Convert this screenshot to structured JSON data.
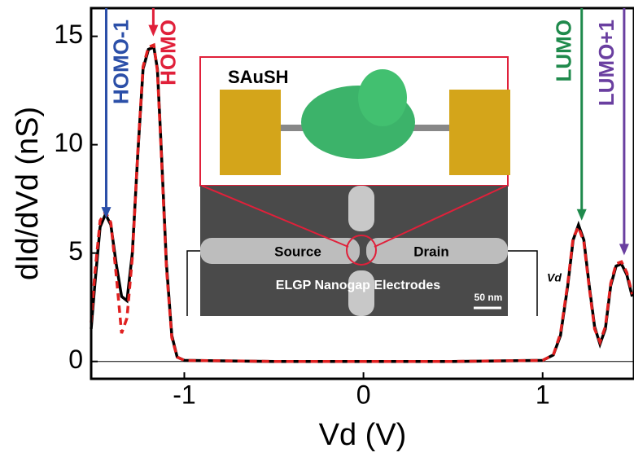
{
  "chart_data": {
    "type": "line",
    "xlabel": "Vd (V)",
    "ylabel": "dId/dVd (nS)",
    "xlim": [
      -1.52,
      1.51
    ],
    "ylim": [
      -0.8,
      16.3
    ],
    "xticks": [
      -1,
      0,
      1
    ],
    "yticks": [
      0,
      5,
      10,
      15
    ],
    "x": [
      -1.52,
      -1.5,
      -1.47,
      -1.44,
      -1.41,
      -1.38,
      -1.35,
      -1.32,
      -1.29,
      -1.26,
      -1.23,
      -1.2,
      -1.17,
      -1.15,
      -1.13,
      -1.1,
      -1.07,
      -1.04,
      -1.0,
      -0.5,
      0,
      0.5,
      1.0,
      1.06,
      1.1,
      1.14,
      1.17,
      1.2,
      1.23,
      1.26,
      1.29,
      1.32,
      1.35,
      1.38,
      1.41,
      1.44,
      1.47,
      1.5
    ],
    "series": [
      {
        "color": "#000000",
        "dash": false,
        "values": [
          1.5,
          3.5,
          6.2,
          6.8,
          6.3,
          4.5,
          3.0,
          2.8,
          5.0,
          9.5,
          13.5,
          14.4,
          14.5,
          13.5,
          10,
          4.5,
          1.2,
          0.2,
          0.05,
          0,
          0,
          0,
          0.05,
          0.3,
          1.2,
          3.5,
          5.6,
          6.3,
          5.6,
          3.5,
          1.6,
          0.8,
          1.5,
          3.5,
          4.4,
          4.5,
          4.0,
          3.0
        ]
      },
      {
        "color": "#e02020",
        "dash": true,
        "values": [
          1.8,
          4.0,
          6.5,
          6.9,
          6.4,
          4.0,
          1.3,
          2.0,
          4.8,
          9.6,
          13.6,
          14.5,
          14.6,
          13.4,
          9.8,
          4.3,
          1.1,
          0.2,
          0.05,
          0,
          0,
          0,
          0.05,
          0.3,
          1.3,
          3.6,
          5.7,
          6.2,
          5.5,
          3.4,
          1.5,
          0.9,
          1.6,
          3.6,
          4.5,
          4.6,
          4.1,
          3.1
        ]
      }
    ],
    "annotations": [
      {
        "text": "HOMO-1",
        "x": -1.436,
        "y": 6.6,
        "color": "#2b4fa8",
        "side": "right"
      },
      {
        "text": "HOMO",
        "x": -1.173,
        "y": 15.0,
        "color": "#e0203a",
        "side": "right"
      },
      {
        "text": "LUMO",
        "x": 1.218,
        "y": 6.5,
        "color": "#1f8a4c",
        "side": "left"
      },
      {
        "text": "LUMO+1",
        "x": 1.455,
        "y": 4.9,
        "color": "#6a3fa0",
        "side": "left"
      }
    ],
    "inset": {
      "molecule": "SAuSH",
      "source": "Source",
      "drain": "Drain",
      "caption": "ELGP Nanogap Electrodes",
      "scale": "50 nm",
      "voltage": "Vd"
    }
  }
}
